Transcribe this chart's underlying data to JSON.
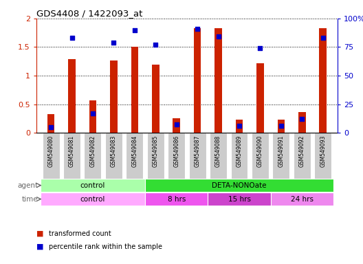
{
  "title": "GDS4408 / 1422093_at",
  "samples": [
    "GSM549080",
    "GSM549081",
    "GSM549082",
    "GSM549083",
    "GSM549084",
    "GSM549085",
    "GSM549086",
    "GSM549087",
    "GSM549088",
    "GSM549089",
    "GSM549090",
    "GSM549091",
    "GSM549092",
    "GSM549093"
  ],
  "red_values": [
    0.33,
    1.29,
    0.57,
    1.27,
    1.5,
    1.19,
    0.26,
    1.83,
    1.83,
    0.23,
    1.22,
    0.23,
    0.36,
    1.83
  ],
  "blue_pct": [
    5,
    83,
    17,
    79,
    90,
    77,
    7,
    91,
    84,
    6,
    74,
    6,
    12,
    83
  ],
  "ylim_left": [
    0,
    2
  ],
  "ylim_right": [
    0,
    100
  ],
  "yticks_left": [
    0,
    0.5,
    1.0,
    1.5,
    2.0
  ],
  "yticks_right": [
    0,
    25,
    50,
    75,
    100
  ],
  "ytick_labels_left": [
    "0",
    "0.5",
    "1",
    "1.5",
    "2"
  ],
  "ytick_labels_right": [
    "0",
    "25",
    "50",
    "75",
    "100%"
  ],
  "agent_groups": [
    {
      "label": "control",
      "start": 0,
      "end": 5,
      "color": "#AAFFAA"
    },
    {
      "label": "DETA-NONOate",
      "start": 5,
      "end": 14,
      "color": "#33DD33"
    }
  ],
  "time_groups": [
    {
      "label": "control",
      "start": 0,
      "end": 5,
      "color": "#FFAAFF"
    },
    {
      "label": "8 hrs",
      "start": 5,
      "end": 8,
      "color": "#EE55EE"
    },
    {
      "label": "15 hrs",
      "start": 8,
      "end": 11,
      "color": "#CC44CC"
    },
    {
      "label": "24 hrs",
      "start": 11,
      "end": 14,
      "color": "#EE88EE"
    }
  ],
  "bar_width": 0.35,
  "red_color": "#CC2200",
  "blue_color": "#0000CC",
  "bg_color": "#FFFFFF",
  "left_axis_color": "#CC2200",
  "right_axis_color": "#0000CC",
  "legend_items": [
    {
      "color": "#CC2200",
      "label": "transformed count"
    },
    {
      "color": "#0000CC",
      "label": "percentile rank within the sample"
    }
  ],
  "xtick_bg_color": "#CCCCCC",
  "plot_bg_color": "#FFFFFF"
}
